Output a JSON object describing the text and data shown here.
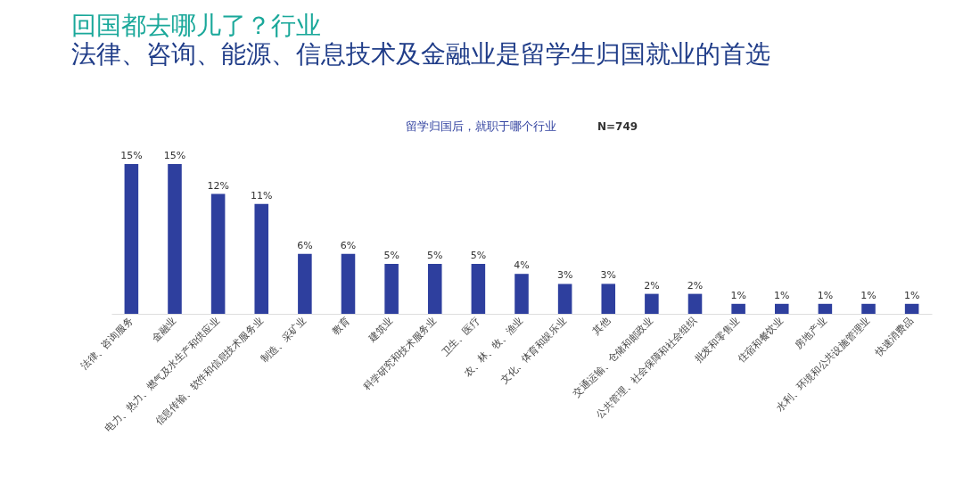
{
  "chart_data": {
    "type": "bar",
    "title": "回国都去哪儿了？行业",
    "subtitle": "法律、咨询、能源、信息技术及金融业是留学生归国就业的首选",
    "annotations": [
      "留学归国后，就职于哪个行业",
      "N=749"
    ],
    "categories": [
      "法律、咨询服务",
      "金融业",
      "电力、热力、燃气及水生产和供应业",
      "信息传输、软件和信息技术服务业",
      "制造、采矿业",
      "教育",
      "建筑业",
      "科学研究和技术服务业",
      "卫生、医疗",
      "农、林、牧、渔业",
      "文化、体育和娱乐业",
      "其他",
      "交通运输、仓储和邮政业",
      "公共管理、社会保障和社会组织",
      "批发和零售业",
      "住宿和餐饮业",
      "房地产业",
      "水利、环境和公共设施管理业",
      "快速消费品"
    ],
    "values": [
      15,
      15,
      12,
      11,
      6,
      6,
      5,
      5,
      5,
      4,
      3,
      3,
      2,
      2,
      1,
      1,
      1,
      1,
      1
    ],
    "value_labels": [
      "15%",
      "15%",
      "12%",
      "11%",
      "6%",
      "6%",
      "5%",
      "5%",
      "5%",
      "4%",
      "3%",
      "3%",
      "2%",
      "2%",
      "1%",
      "1%",
      "1%",
      "1%",
      "1%"
    ],
    "color": "#2e3f9e"
  }
}
